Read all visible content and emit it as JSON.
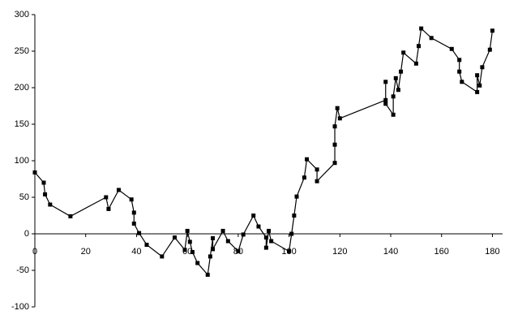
{
  "chart_data": {
    "type": "line",
    "x": [
      0,
      3.5,
      4,
      6,
      14,
      28,
      29,
      33,
      38,
      39,
      39,
      41,
      44,
      50,
      55,
      59,
      60,
      61,
      62,
      64,
      68,
      69,
      70,
      70,
      74,
      76,
      80,
      82,
      86,
      88,
      91,
      91,
      92,
      93,
      100,
      101,
      102,
      103,
      106,
      107,
      111,
      111,
      118,
      118,
      118,
      119,
      120,
      138,
      138,
      138,
      141,
      141,
      142,
      143,
      144,
      145,
      150,
      151,
      152,
      156,
      164,
      167,
      167,
      168,
      174,
      174,
      175,
      176,
      179,
      180
    ],
    "series": [
      {
        "color": "#000000",
        "values": [
          84,
          70,
          54,
          40,
          24,
          50,
          34,
          60,
          47,
          29,
          14,
          1,
          -15,
          -31,
          -5,
          -22,
          4,
          -11,
          -25,
          -40,
          -56,
          -31,
          -6,
          -21,
          4,
          -10,
          -24,
          -1,
          25,
          10,
          -5,
          -19,
          4,
          -10,
          -24,
          0,
          25,
          51,
          77,
          102,
          88,
          72,
          97,
          122,
          147,
          172,
          158,
          183,
          208,
          178,
          163,
          188,
          213,
          197,
          222,
          248,
          233,
          257,
          281,
          268,
          253,
          238,
          222,
          208,
          194,
          217,
          203,
          228,
          252,
          278
        ]
      }
    ],
    "xlim": [
      0,
      184
    ],
    "ylim": [
      -100,
      300
    ],
    "xticks": [
      0,
      20,
      40,
      60,
      80,
      100,
      120,
      140,
      160,
      180
    ],
    "yticks": [
      -100,
      -50,
      0,
      50,
      100,
      150,
      200,
      250,
      300
    ]
  }
}
